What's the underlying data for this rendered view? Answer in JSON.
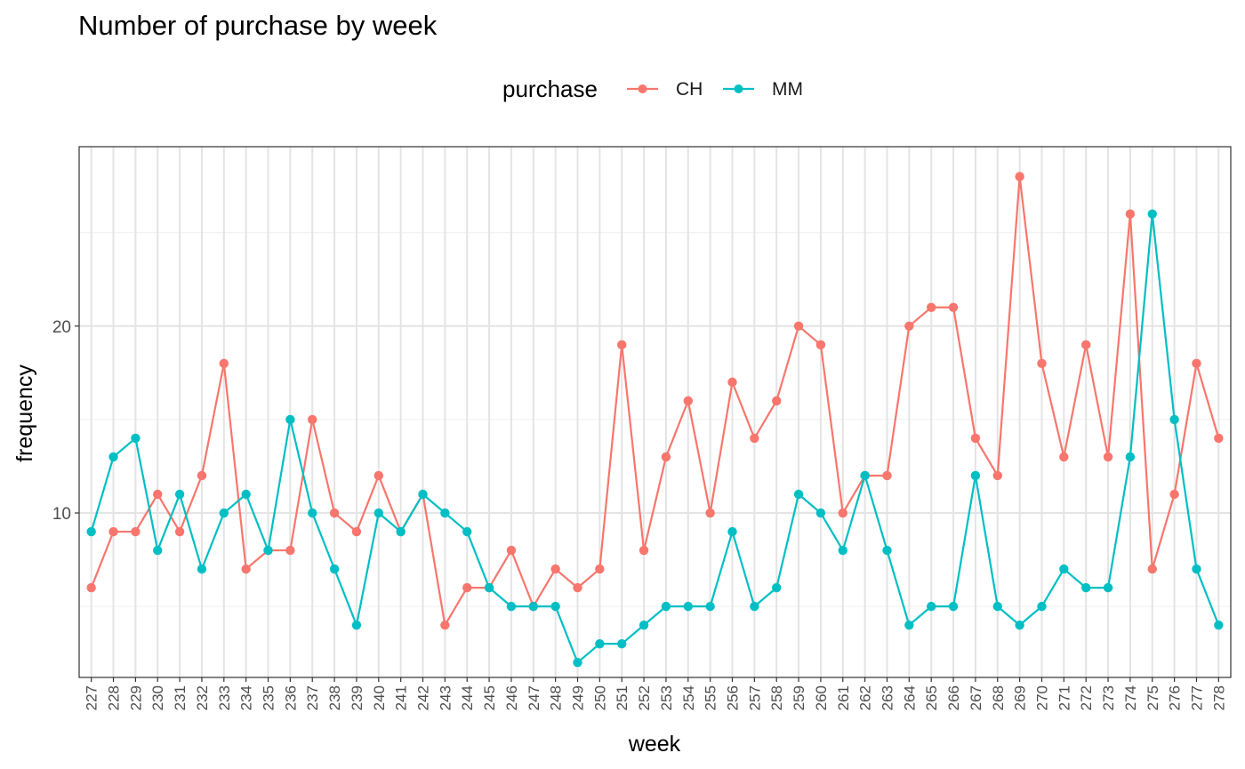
{
  "chart_data": {
    "type": "line",
    "title": "Number of purchase by week",
    "xlabel": "week",
    "ylabel": "frequency",
    "legend": {
      "title": "purchase",
      "position": "top"
    },
    "x": [
      227,
      228,
      229,
      230,
      231,
      232,
      233,
      234,
      235,
      236,
      237,
      238,
      239,
      240,
      241,
      242,
      243,
      244,
      245,
      246,
      247,
      248,
      249,
      250,
      251,
      252,
      253,
      254,
      255,
      256,
      257,
      258,
      259,
      260,
      261,
      262,
      263,
      264,
      265,
      266,
      267,
      268,
      269,
      270,
      271,
      272,
      273,
      274,
      275,
      276,
      277,
      278
    ],
    "ylim": [
      1.2,
      29.6
    ],
    "yticks": [
      10,
      20
    ],
    "grid": true,
    "series": [
      {
        "name": "CH",
        "color": "#F8766D",
        "values": [
          6,
          9,
          9,
          11,
          9,
          12,
          18,
          7,
          8,
          8,
          15,
          10,
          9,
          12,
          9,
          11,
          4,
          6,
          6,
          8,
          5,
          7,
          6,
          7,
          19,
          8,
          13,
          16,
          10,
          17,
          14,
          16,
          20,
          19,
          10,
          12,
          12,
          20,
          21,
          21,
          14,
          12,
          28,
          18,
          13,
          19,
          13,
          26,
          7,
          11,
          18,
          14
        ]
      },
      {
        "name": "MM",
        "color": "#00BFC4",
        "values": [
          9,
          13,
          14,
          8,
          11,
          7,
          10,
          11,
          8,
          15,
          10,
          7,
          4,
          10,
          9,
          11,
          10,
          9,
          6,
          5,
          5,
          5,
          2,
          3,
          3,
          4,
          5,
          5,
          5,
          9,
          5,
          6,
          11,
          10,
          8,
          12,
          8,
          4,
          5,
          5,
          12,
          5,
          4,
          5,
          7,
          6,
          6,
          13,
          26,
          15,
          7,
          4
        ]
      }
    ]
  }
}
